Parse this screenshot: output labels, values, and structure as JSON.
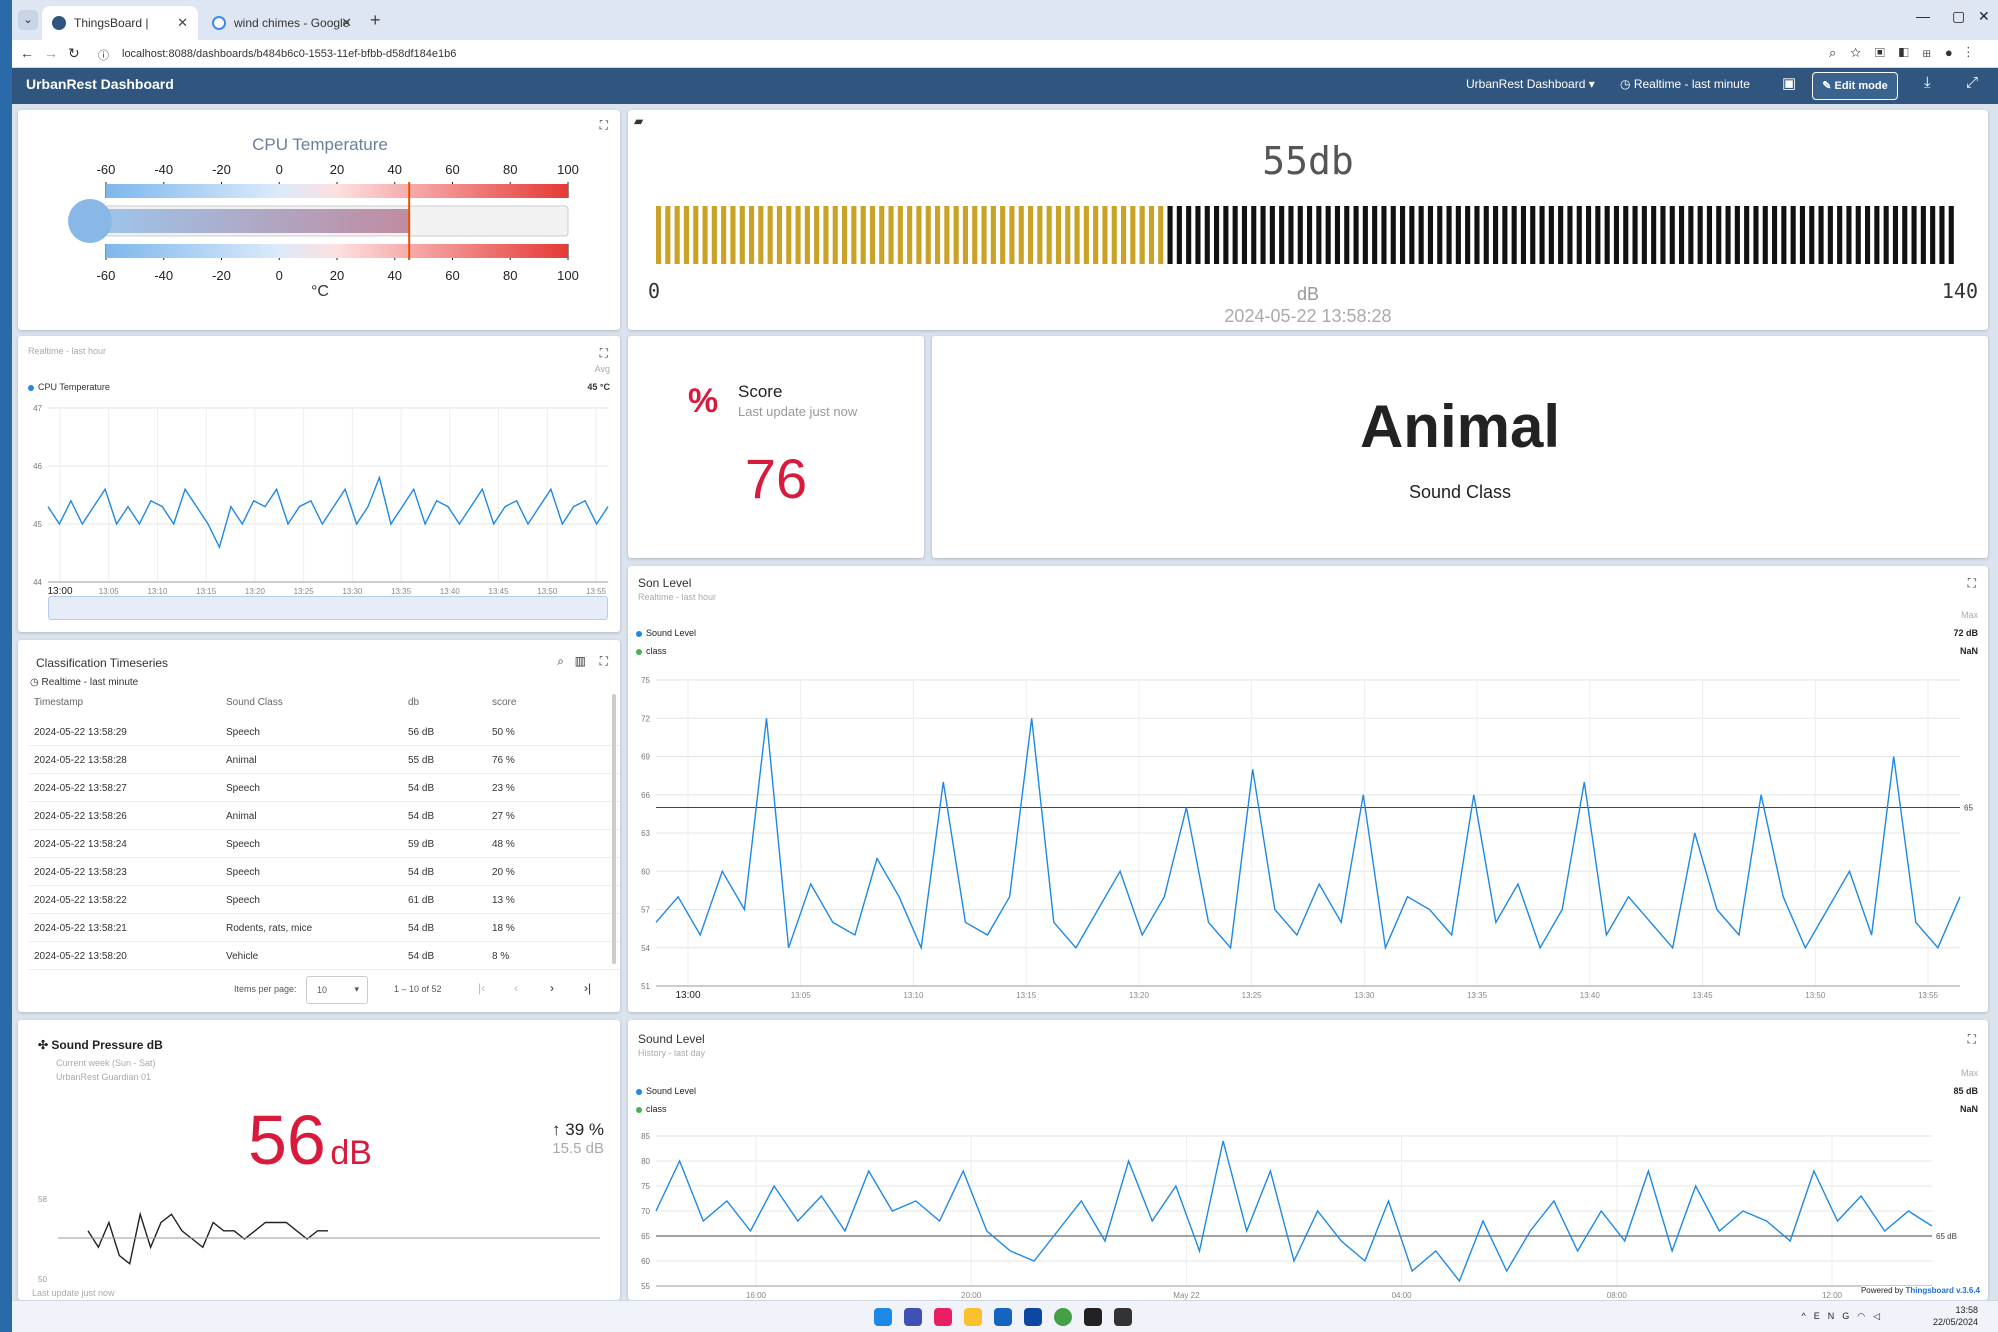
{
  "browser": {
    "tabs": [
      {
        "title": "ThingsBoard | Dashboard",
        "active": true
      },
      {
        "title": "wind chimes - Google Search",
        "active": false
      }
    ],
    "url": "localhost:8088/dashboards/b484b6c0-1553-11ef-bfbb-d58df184e1b6"
  },
  "header": {
    "title": "UrbanRest Dashboard",
    "dashboard_select": "UrbanRest Dashboard",
    "timewindow": "Realtime - last minute",
    "edit_mode": "Edit mode"
  },
  "cpu_gauge": {
    "title": "CPU Temperature",
    "unit": "°C",
    "min": -60,
    "max": 100,
    "value": 45,
    "ticks": [
      "-60",
      "-40",
      "-20",
      "0",
      "20",
      "40",
      "60",
      "80",
      "100"
    ]
  },
  "db_meter": {
    "value_text": "55db",
    "value": 55,
    "min_label": "0",
    "max_label": "140",
    "max": 140,
    "unit": "dB",
    "timestamp": "2024-05-22 13:58:28"
  },
  "cpu_chart": {
    "timewindow": "Realtime - last hour",
    "avg_label": "Avg",
    "series_name": "CPU Temperature",
    "avg_value": "45 °C",
    "chart_data": {
      "type": "line",
      "ylim": [
        44,
        47
      ],
      "yticks": [
        "47",
        "46",
        "45",
        "44"
      ],
      "xticks": [
        "13:00",
        "13:05",
        "13:10",
        "13:15",
        "13:20",
        "13:25",
        "13:30",
        "13:35",
        "13:40",
        "13:45",
        "13:50",
        "13:55"
      ],
      "series": [
        {
          "name": "CPU Temperature",
          "color": "#1e88e5",
          "values": [
            45.3,
            45.0,
            45.4,
            45.0,
            45.3,
            45.6,
            45.0,
            45.3,
            45.0,
            45.4,
            45.3,
            45.0,
            45.6,
            45.3,
            45.0,
            44.6,
            45.3,
            45.0,
            45.4,
            45.3,
            45.6,
            45.0,
            45.3,
            45.4,
            45.0,
            45.3,
            45.6,
            45.0,
            45.3,
            45.8,
            45.0,
            45.3,
            45.6,
            45.0,
            45.4,
            45.3,
            45.0,
            45.3,
            45.6,
            45.0,
            45.3,
            45.4,
            45.0,
            45.3,
            45.6,
            45.0,
            45.3,
            45.4,
            45.0,
            45.3
          ]
        }
      ]
    }
  },
  "score": {
    "title": "Score",
    "subtitle": "Last update just now",
    "value": "76",
    "icon": "percent-icon"
  },
  "sound_class": {
    "value": "Animal",
    "label": "Sound Class"
  },
  "classification": {
    "title": "Classification Timeseries",
    "timewindow": "Realtime - last minute",
    "columns": [
      "Timestamp",
      "Sound Class",
      "db",
      "score"
    ],
    "rows": [
      [
        "2024-05-22 13:58:29",
        "Speech",
        "56 dB",
        "50 %"
      ],
      [
        "2024-05-22 13:58:28",
        "Animal",
        "55 dB",
        "76 %"
      ],
      [
        "2024-05-22 13:58:27",
        "Speech",
        "54 dB",
        "23 %"
      ],
      [
        "2024-05-22 13:58:26",
        "Animal",
        "54 dB",
        "27 %"
      ],
      [
        "2024-05-22 13:58:24",
        "Speech",
        "59 dB",
        "48 %"
      ],
      [
        "2024-05-22 13:58:23",
        "Speech",
        "54 dB",
        "20 %"
      ],
      [
        "2024-05-22 13:58:22",
        "Speech",
        "61 dB",
        "13 %"
      ],
      [
        "2024-05-22 13:58:21",
        "Rodents, rats, mice",
        "54 dB",
        "18 %"
      ],
      [
        "2024-05-22 13:58:20",
        "Vehicle",
        "54 dB",
        "8 %"
      ]
    ],
    "pager": {
      "items_per_page_label": "Items per page:",
      "items_per_page": "10",
      "range": "1 – 10 of 52"
    }
  },
  "son_level": {
    "title": "Son Level",
    "timewindow": "Realtime - last hour",
    "max_label": "Max",
    "legend": [
      {
        "name": "Sound Level",
        "value": "72 dB",
        "color": "#1e88e5"
      },
      {
        "name": "class",
        "value": "NaN",
        "color": "#4caf50"
      }
    ],
    "threshold_label": "65",
    "chart_data": {
      "type": "line",
      "ylim": [
        51,
        75
      ],
      "yticks": [
        "75",
        "72",
        "69",
        "66",
        "63",
        "60",
        "57",
        "54",
        "51"
      ],
      "xticks": [
        "13:00",
        "13:05",
        "13:10",
        "13:15",
        "13:20",
        "13:25",
        "13:30",
        "13:35",
        "13:40",
        "13:45",
        "13:50",
        "13:55"
      ],
      "threshold": 65,
      "series": [
        {
          "name": "Sound Level",
          "color": "#1e88e5",
          "values": [
            56,
            58,
            55,
            60,
            57,
            72,
            54,
            59,
            56,
            55,
            61,
            58,
            54,
            67,
            56,
            55,
            58,
            72,
            56,
            54,
            57,
            60,
            55,
            58,
            65,
            56,
            54,
            68,
            57,
            55,
            59,
            56,
            66,
            54,
            58,
            57,
            55,
            66,
            56,
            59,
            54,
            57,
            67,
            55,
            58,
            56,
            54,
            63,
            57,
            55,
            66,
            58,
            54,
            57,
            60,
            55,
            69,
            56,
            54,
            58
          ]
        }
      ]
    }
  },
  "sound_pressure": {
    "title": "Sound Pressure dB",
    "period": "Current week (Sun - Sat)",
    "device": "UrbanRest Guardian 01",
    "value": "56",
    "unit": "dB",
    "delta_pct": "39 %",
    "delta_abs": "15.5 dB",
    "footer": "Last update just now",
    "spark_labels": [
      "58",
      "50"
    ],
    "chart_data": {
      "type": "line",
      "series": [
        {
          "name": "",
          "color": "#222222",
          "values": [
            55,
            53,
            56,
            52,
            51,
            57,
            53,
            56,
            57,
            55,
            54,
            53,
            56,
            55,
            55,
            54,
            55,
            56,
            56,
            56,
            55,
            54,
            55,
            55
          ]
        }
      ]
    }
  },
  "sound_level": {
    "title": "Sound Level",
    "timewindow": "History - last day",
    "max_label": "Max",
    "legend": [
      {
        "name": "Sound Level",
        "value": "85 dB",
        "color": "#1e88e5"
      },
      {
        "name": "class",
        "value": "NaN",
        "color": "#4caf50"
      }
    ],
    "threshold_label": "65 dB",
    "powered_by": "Powered by",
    "powered_link": "Thingsboard v.3.6.4",
    "chart_data": {
      "type": "line",
      "ylim": [
        55,
        85
      ],
      "yticks": [
        "85",
        "80",
        "75",
        "70",
        "65",
        "60",
        "55"
      ],
      "xticks": [
        "16:00",
        "20:00",
        "May 22",
        "04:00",
        "08:00",
        "12:00"
      ],
      "threshold": 65,
      "series": [
        {
          "name": "Sound Level",
          "color": "#1e88e5",
          "values": [
            70,
            80,
            68,
            72,
            66,
            75,
            68,
            73,
            66,
            78,
            70,
            72,
            68,
            78,
            66,
            62,
            60,
            66,
            72,
            64,
            80,
            68,
            75,
            62,
            84,
            66,
            78,
            60,
            70,
            64,
            60,
            72,
            58,
            62,
            56,
            68,
            58,
            66,
            72,
            62,
            70,
            64,
            78,
            62,
            75,
            66,
            70,
            68,
            64,
            78,
            68,
            73,
            66,
            70,
            67
          ]
        }
      ]
    }
  },
  "taskbar": {
    "lang": "ENG",
    "time": "13:58",
    "date": "22/05/2024"
  }
}
